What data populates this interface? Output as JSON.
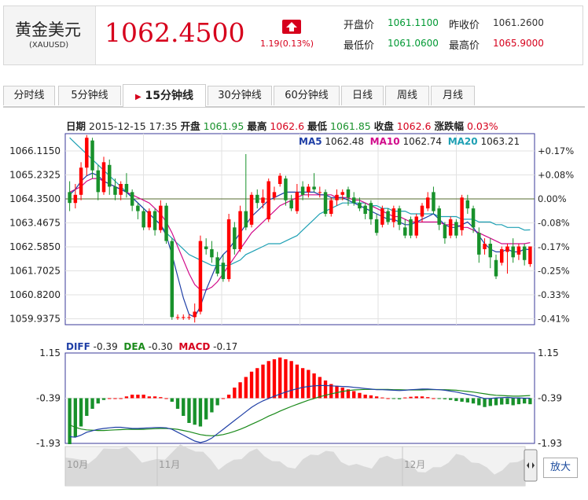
{
  "header": {
    "name": "黄金美元",
    "code": "(XAUUSD)",
    "price": "1062.4500",
    "change": "1.19(0.13%)",
    "stats": [
      {
        "label": "开盘价",
        "value": "1061.1100",
        "color": "#009933"
      },
      {
        "label": "昨收价",
        "value": "1061.2600",
        "color": "#333333"
      },
      {
        "label": "最低价",
        "value": "1061.0600",
        "color": "#009933"
      },
      {
        "label": "最高价",
        "value": "1065.9000",
        "color": "#d6001c"
      }
    ]
  },
  "tabs": [
    "分时线",
    "5分钟线",
    "15分钟线",
    "30分钟线",
    "60分钟线",
    "日线",
    "周线",
    "月线"
  ],
  "active_tab": "15分钟线",
  "info": {
    "date_label": "日期",
    "date": "2015-12-15 17:35",
    "open_label": "开盘",
    "open": "1061.95",
    "high_label": "最高",
    "high": "1062.6",
    "low_label": "最低",
    "low": "1061.85",
    "close_label": "收盘",
    "close": "1062.6",
    "chg_label": "涨跌幅",
    "chg": "0.03%"
  },
  "ma_legend": [
    {
      "label": "MA5",
      "value": "1062.48",
      "color": "#1f3fa6"
    },
    {
      "label": "MA10",
      "value": "1062.74",
      "color": "#d10a8a"
    },
    {
      "label": "MA20",
      "value": "1063.21",
      "color": "#1ea0b4"
    }
  ],
  "macd_legend": [
    {
      "label": "DIFF",
      "value": "-0.39",
      "color": "#1f3fa6"
    },
    {
      "label": "DEA",
      "value": "-0.30",
      "color": "#1a8a1a"
    },
    {
      "label": "MACD",
      "value": "-0.17",
      "color": "#d6001c"
    }
  ],
  "nav": {
    "months": [
      "10月",
      "11月",
      "12月"
    ],
    "zoom_label": "放大"
  },
  "colors": {
    "up": "#ff0000",
    "down": "#18912b",
    "grid": "#e2e2e2",
    "frame": "#3a3a99"
  },
  "chart_data": [
    {
      "type": "candlestick",
      "title": "15分钟线",
      "y_ticks": [
        "1066.1150",
        "1065.2325",
        "1064.3500",
        "1063.4675",
        "1062.5850",
        "1061.7025",
        "1060.8200",
        "1059.9375"
      ],
      "y_right_ticks": [
        "+0.17%",
        "+0.08%",
        "0.00%",
        "-0.08%",
        "-0.17%",
        "-0.25%",
        "-0.33%",
        "-0.41%"
      ],
      "ylim": [
        1059.8,
        1066.6
      ],
      "reference_price": 1064.35,
      "candles": [
        [
          1064.6,
          1064.2,
          1065.0,
          1063.9
        ],
        [
          1064.2,
          1064.5,
          1064.9,
          1064.0
        ],
        [
          1064.5,
          1065.5,
          1065.7,
          1064.3
        ],
        [
          1065.5,
          1066.6,
          1066.7,
          1065.2
        ],
        [
          1066.5,
          1065.4,
          1066.6,
          1065.1
        ],
        [
          1065.4,
          1064.6,
          1065.6,
          1064.3
        ],
        [
          1064.6,
          1065.7,
          1065.9,
          1064.5
        ],
        [
          1065.6,
          1064.8,
          1065.8,
          1064.5
        ],
        [
          1064.8,
          1064.5,
          1065.1,
          1064.3
        ],
        [
          1064.5,
          1064.9,
          1065.0,
          1064.3
        ],
        [
          1064.9,
          1064.6,
          1065.3,
          1064.4
        ],
        [
          1064.6,
          1064.1,
          1064.7,
          1063.9
        ],
        [
          1064.1,
          1063.9,
          1064.2,
          1063.6
        ],
        [
          1063.9,
          1063.3,
          1064.0,
          1063.2
        ],
        [
          1063.3,
          1063.9,
          1064.0,
          1063.2
        ],
        [
          1063.9,
          1063.2,
          1064.0,
          1063.0
        ],
        [
          1063.2,
          1064.1,
          1064.3,
          1063.1
        ],
        [
          1064.1,
          1062.8,
          1064.2,
          1062.7
        ],
        [
          1062.8,
          1060.0,
          1062.9,
          1059.9
        ],
        [
          1060.0,
          1060.0,
          1060.1,
          1059.9
        ],
        [
          1060.0,
          1060.0,
          1060.1,
          1059.9
        ],
        [
          1060.0,
          1060.0,
          1060.1,
          1059.9
        ],
        [
          1060.0,
          1060.2,
          1060.5,
          1059.8
        ],
        [
          1060.2,
          1062.8,
          1063.0,
          1060.1
        ],
        [
          1062.6,
          1062.5,
          1062.9,
          1062.3
        ],
        [
          1062.5,
          1062.2,
          1062.8,
          1062.0
        ],
        [
          1062.2,
          1061.6,
          1062.4,
          1061.5
        ],
        [
          1062.0,
          1061.4,
          1062.3,
          1061.3
        ],
        [
          1061.4,
          1063.6,
          1063.8,
          1061.3
        ],
        [
          1063.3,
          1062.5,
          1063.5,
          1062.3
        ],
        [
          1062.5,
          1063.9,
          1064.1,
          1062.4
        ],
        [
          1063.9,
          1063.3,
          1066.0,
          1063.2
        ],
        [
          1063.4,
          1064.5,
          1064.6,
          1063.3
        ],
        [
          1064.5,
          1064.2,
          1064.7,
          1064.0
        ],
        [
          1064.2,
          1064.4,
          1064.7,
          1064.0
        ],
        [
          1063.6,
          1065.0,
          1065.1,
          1063.5
        ],
        [
          1064.4,
          1064.6,
          1064.8,
          1064.3
        ],
        [
          1064.9,
          1065.2,
          1065.3,
          1064.8
        ],
        [
          1065.1,
          1064.3,
          1065.2,
          1064.1
        ],
        [
          1064.3,
          1064.0,
          1064.5,
          1063.9
        ],
        [
          1063.9,
          1064.6,
          1064.9,
          1063.8
        ],
        [
          1064.8,
          1064.5,
          1065.0,
          1064.3
        ],
        [
          1064.6,
          1064.8,
          1064.9,
          1064.4
        ],
        [
          1064.8,
          1064.7,
          1065.3,
          1064.6
        ],
        [
          1064.6,
          1064.6,
          1064.8,
          1064.4
        ],
        [
          1064.6,
          1063.8,
          1064.7,
          1063.7
        ],
        [
          1063.8,
          1064.3,
          1064.4,
          1063.7
        ],
        [
          1064.3,
          1064.5,
          1064.7,
          1064.1
        ],
        [
          1064.5,
          1064.6,
          1064.7,
          1064.3
        ],
        [
          1064.7,
          1064.4,
          1064.8,
          1064.1
        ],
        [
          1064.4,
          1064.2,
          1064.6,
          1064.1
        ],
        [
          1064.2,
          1064.0,
          1064.4,
          1063.9
        ],
        [
          1064.1,
          1063.8,
          1064.2,
          1063.6
        ],
        [
          1064.2,
          1063.6,
          1064.3,
          1063.4
        ],
        [
          1063.6,
          1063.1,
          1063.8,
          1063.0
        ],
        [
          1063.4,
          1064.0,
          1064.1,
          1063.3
        ],
        [
          1063.9,
          1063.5,
          1064.0,
          1063.4
        ],
        [
          1063.5,
          1064.0,
          1064.1,
          1063.3
        ],
        [
          1064.0,
          1063.4,
          1064.1,
          1063.2
        ],
        [
          1063.3,
          1063.0,
          1063.6,
          1062.9
        ],
        [
          1063.6,
          1063.0,
          1063.7,
          1062.9
        ],
        [
          1063.0,
          1063.7,
          1063.8,
          1062.9
        ],
        [
          1063.7,
          1064.1,
          1064.2,
          1063.5
        ],
        [
          1064.0,
          1064.4,
          1064.6,
          1063.9
        ],
        [
          1064.6,
          1063.9,
          1064.8,
          1063.8
        ],
        [
          1064.0,
          1063.4,
          1064.1,
          1063.2
        ],
        [
          1063.4,
          1062.9,
          1063.5,
          1062.7
        ],
        [
          1063.0,
          1063.6,
          1063.7,
          1062.9
        ],
        [
          1063.5,
          1063.0,
          1063.6,
          1062.9
        ],
        [
          1063.2,
          1064.4,
          1064.5,
          1063.0
        ],
        [
          1064.3,
          1064.0,
          1064.5,
          1063.8
        ],
        [
          1064.0,
          1063.3,
          1064.1,
          1063.1
        ],
        [
          1063.1,
          1062.3,
          1063.3,
          1062.0
        ],
        [
          1062.5,
          1062.7,
          1062.9,
          1062.3
        ],
        [
          1062.7,
          1062.2,
          1062.9,
          1061.8
        ],
        [
          1062.1,
          1061.5,
          1062.3,
          1061.4
        ],
        [
          1062.0,
          1062.5,
          1062.6,
          1061.9
        ],
        [
          1062.4,
          1062.6,
          1062.7,
          1061.6
        ],
        [
          1062.6,
          1062.2,
          1062.9,
          1062.0
        ],
        [
          1062.3,
          1062.6,
          1062.7,
          1062.1
        ],
        [
          1062.6,
          1062.1,
          1062.7,
          1061.9
        ],
        [
          1061.95,
          1062.6,
          1062.6,
          1061.85
        ]
      ],
      "ma5": [
        1064.5,
        1064.7,
        1065.0,
        1065.2,
        1065.3,
        1065.2,
        1065.0,
        1064.9,
        1064.8,
        1064.7,
        1064.6,
        1064.4,
        1064.2,
        1064.0,
        1063.8,
        1063.6,
        1063.4,
        1063.0,
        1062.3,
        1061.5,
        1060.7,
        1060.1,
        1060.0,
        1060.4,
        1061.0,
        1061.5,
        1062.0,
        1062.3,
        1062.5,
        1062.8,
        1063.1,
        1063.4,
        1063.7,
        1063.9,
        1064.1,
        1064.3,
        1064.4,
        1064.5,
        1064.6,
        1064.6,
        1064.6,
        1064.6,
        1064.6,
        1064.6,
        1064.5,
        1064.5,
        1064.4,
        1064.4,
        1064.4,
        1064.3,
        1064.2,
        1064.1,
        1064.0,
        1063.9,
        1063.8,
        1063.7,
        1063.6,
        1063.6,
        1063.5,
        1063.4,
        1063.4,
        1063.5,
        1063.6,
        1063.7,
        1063.8,
        1063.6,
        1063.4,
        1063.3,
        1063.3,
        1063.4,
        1063.5,
        1063.3,
        1063.0,
        1062.7,
        1062.5,
        1062.4,
        1062.4,
        1062.5,
        1062.4,
        1062.4,
        1062.5,
        1062.48
      ],
      "ma10": [
        1064.6,
        1064.7,
        1064.8,
        1065.0,
        1065.1,
        1065.1,
        1065.0,
        1064.9,
        1064.8,
        1064.7,
        1064.6,
        1064.5,
        1064.4,
        1064.3,
        1064.2,
        1064.0,
        1063.8,
        1063.5,
        1063.1,
        1062.6,
        1062.1,
        1061.6,
        1061.2,
        1061.0,
        1061.0,
        1061.1,
        1061.3,
        1061.6,
        1061.9,
        1062.2,
        1062.5,
        1062.8,
        1063.1,
        1063.3,
        1063.5,
        1063.7,
        1063.9,
        1064.1,
        1064.2,
        1064.3,
        1064.4,
        1064.5,
        1064.5,
        1064.5,
        1064.5,
        1064.5,
        1064.5,
        1064.4,
        1064.4,
        1064.4,
        1064.3,
        1064.3,
        1064.2,
        1064.1,
        1064.0,
        1063.9,
        1063.8,
        1063.7,
        1063.7,
        1063.6,
        1063.5,
        1063.5,
        1063.5,
        1063.5,
        1063.5,
        1063.5,
        1063.4,
        1063.4,
        1063.4,
        1063.3,
        1063.3,
        1063.2,
        1063.1,
        1063.0,
        1062.9,
        1062.8,
        1062.7,
        1062.7,
        1062.7,
        1062.7,
        1062.7,
        1062.74
      ],
      "ma20": [
        1066.6,
        1066.4,
        1066.2,
        1066.0,
        1065.8,
        1065.6,
        1065.4,
        1065.2,
        1065.0,
        1064.8,
        1064.6,
        1064.4,
        1064.2,
        1064.0,
        1063.8,
        1063.6,
        1063.4,
        1063.1,
        1062.9,
        1062.7,
        1062.5,
        1062.3,
        1062.2,
        1062.1,
        1062.0,
        1061.9,
        1061.9,
        1061.9,
        1061.9,
        1062.0,
        1062.1,
        1062.3,
        1062.4,
        1062.5,
        1062.6,
        1062.7,
        1062.7,
        1062.7,
        1062.8,
        1062.9,
        1063.0,
        1063.2,
        1063.4,
        1063.6,
        1063.8,
        1063.9,
        1064.0,
        1064.1,
        1064.2,
        1064.2,
        1064.2,
        1064.2,
        1064.2,
        1064.1,
        1064.1,
        1064.0,
        1064.0,
        1063.9,
        1063.9,
        1063.9,
        1063.8,
        1063.8,
        1063.8,
        1063.8,
        1063.8,
        1063.7,
        1063.7,
        1063.7,
        1063.7,
        1063.6,
        1063.6,
        1063.6,
        1063.5,
        1063.5,
        1063.5,
        1063.4,
        1063.4,
        1063.3,
        1063.3,
        1063.3,
        1063.2,
        1063.21
      ]
    },
    {
      "type": "bar",
      "title": "MACD",
      "y_ticks": [
        "1.15",
        "-0.39",
        "-1.93"
      ],
      "ylim": [
        -1.93,
        1.15
      ],
      "macd": [
        -1.3,
        -1.1,
        -0.8,
        -0.5,
        -0.3,
        -0.15,
        -0.05,
        0,
        0,
        0,
        0.05,
        0.1,
        0.1,
        0.1,
        0.05,
        0.05,
        0.03,
        0,
        -0.1,
        -0.3,
        -0.5,
        -0.7,
        -0.75,
        -0.8,
        -0.6,
        -0.4,
        -0.2,
        0,
        0.1,
        0.3,
        0.45,
        0.6,
        0.75,
        0.85,
        0.95,
        1.05,
        1.1,
        1.15,
        1.1,
        1.05,
        0.95,
        0.85,
        0.8,
        0.7,
        0.6,
        0.5,
        0.4,
        0.35,
        0.3,
        0.25,
        0.2,
        0.15,
        0.1,
        0.08,
        0.05,
        0.02,
        0,
        -0.02,
        -0.03,
        0.02,
        0.04,
        0.05,
        0.05,
        0.03,
        0,
        -0.02,
        -0.03,
        -0.05,
        -0.08,
        -0.1,
        -0.12,
        -0.15,
        -0.2,
        -0.25,
        -0.22,
        -0.2,
        -0.18,
        -0.17,
        -0.2,
        -0.17,
        -0.15,
        -0.17
      ],
      "diff": [
        -1.7,
        -1.72,
        -1.65,
        -1.55,
        -1.5,
        -1.45,
        -1.42,
        -1.4,
        -1.38,
        -1.38,
        -1.4,
        -1.42,
        -1.42,
        -1.41,
        -1.4,
        -1.39,
        -1.39,
        -1.4,
        -1.45,
        -1.55,
        -1.65,
        -1.75,
        -1.85,
        -1.9,
        -1.85,
        -1.75,
        -1.6,
        -1.45,
        -1.3,
        -1.15,
        -1.0,
        -0.85,
        -0.7,
        -0.58,
        -0.48,
        -0.4,
        -0.32,
        -0.25,
        -0.18,
        -0.12,
        -0.07,
        -0.02,
        0.01,
        0.03,
        0.04,
        0.04,
        0.03,
        0.02,
        0.01,
        0,
        -0.02,
        -0.04,
        -0.06,
        -0.08,
        -0.1,
        -0.1,
        -0.11,
        -0.12,
        -0.13,
        -0.12,
        -0.1,
        -0.09,
        -0.08,
        -0.08,
        -0.09,
        -0.1,
        -0.12,
        -0.15,
        -0.18,
        -0.22,
        -0.26,
        -0.3,
        -0.35,
        -0.4,
        -0.4,
        -0.38,
        -0.37,
        -0.36,
        -0.38,
        -0.38,
        -0.39,
        -0.39
      ],
      "dea": [
        -1.3,
        -1.38,
        -1.44,
        -1.47,
        -1.48,
        -1.49,
        -1.49,
        -1.48,
        -1.47,
        -1.46,
        -1.45,
        -1.45,
        -1.45,
        -1.45,
        -1.44,
        -1.43,
        -1.42,
        -1.42,
        -1.43,
        -1.45,
        -1.49,
        -1.53,
        -1.58,
        -1.63,
        -1.66,
        -1.67,
        -1.66,
        -1.63,
        -1.58,
        -1.52,
        -1.45,
        -1.37,
        -1.28,
        -1.19,
        -1.1,
        -1.0,
        -0.92,
        -0.83,
        -0.75,
        -0.67,
        -0.6,
        -0.53,
        -0.46,
        -0.4,
        -0.34,
        -0.29,
        -0.24,
        -0.2,
        -0.16,
        -0.13,
        -0.11,
        -0.1,
        -0.09,
        -0.09,
        -0.09,
        -0.09,
        -0.09,
        -0.1,
        -0.1,
        -0.11,
        -0.11,
        -0.11,
        -0.11,
        -0.1,
        -0.1,
        -0.1,
        -0.1,
        -0.11,
        -0.12,
        -0.14,
        -0.16,
        -0.18,
        -0.21,
        -0.24,
        -0.27,
        -0.29,
        -0.3,
        -0.31,
        -0.32,
        -0.32,
        -0.31,
        -0.3
      ]
    }
  ]
}
